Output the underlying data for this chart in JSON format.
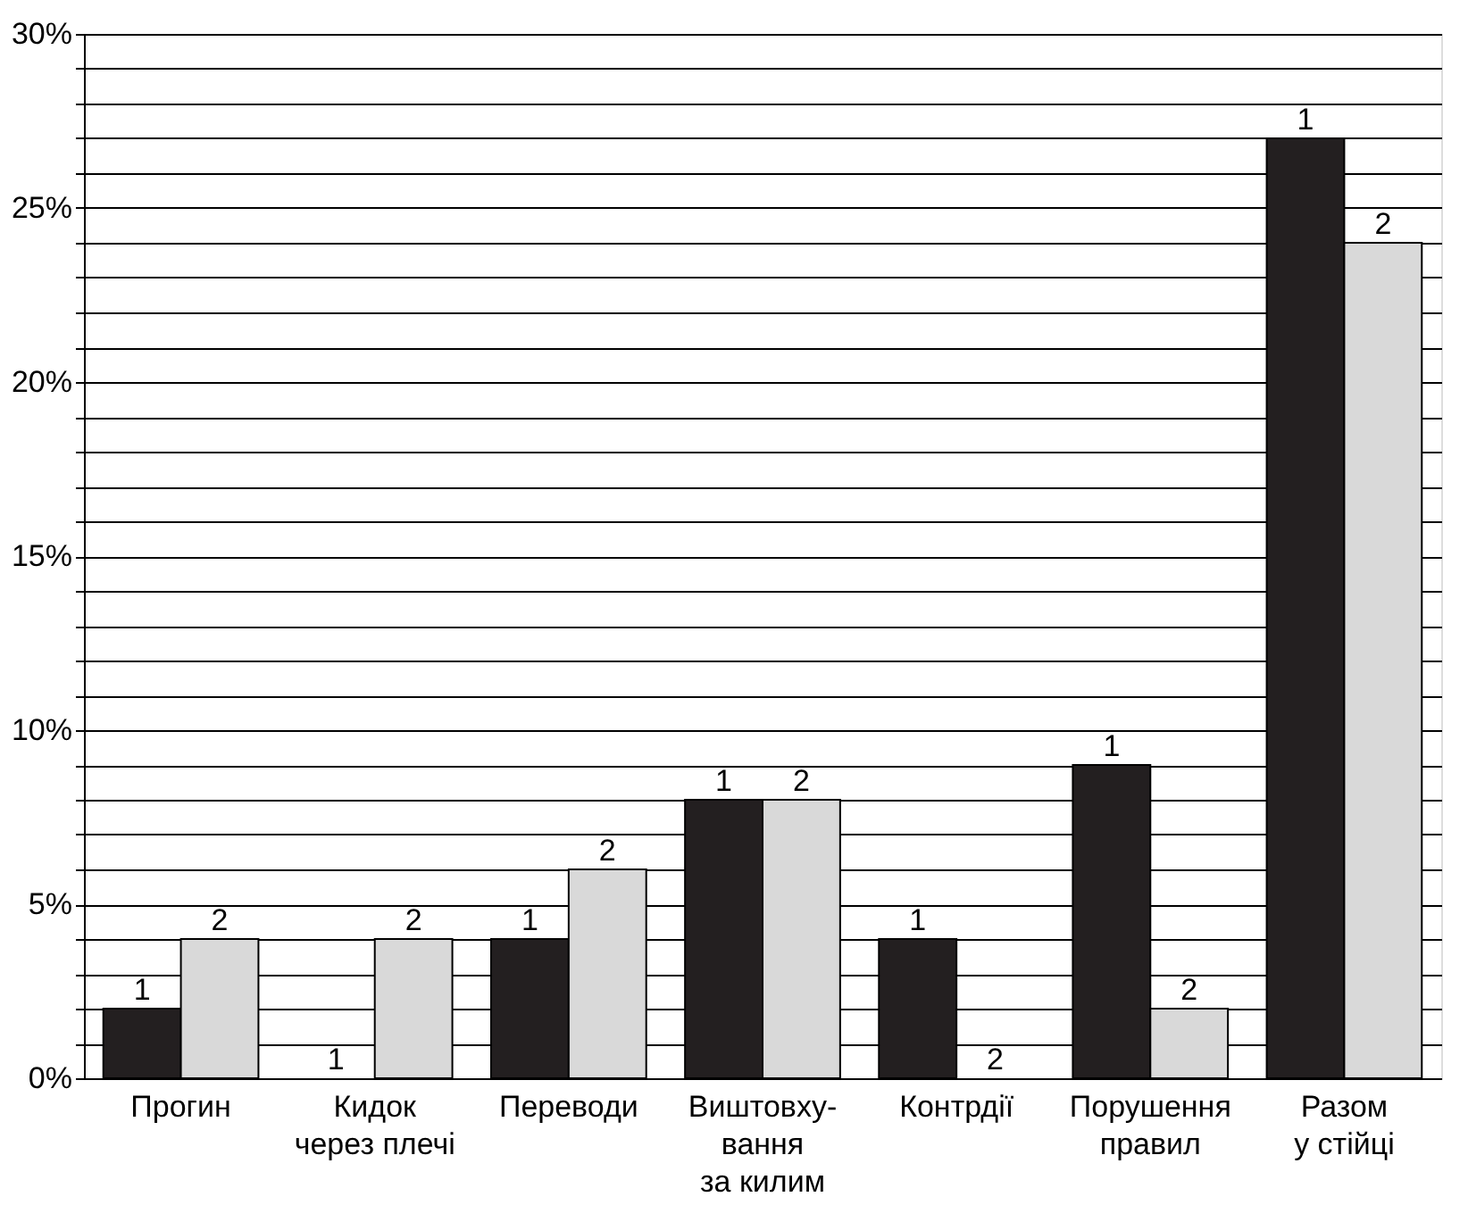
{
  "chart_data": {
    "type": "bar",
    "categories": [
      "Прогин",
      "Кидок\nчерез плечі",
      "Переводи",
      "Виштовху-\nвання\nза килим",
      "Контрдії",
      "Порушення\nправил",
      "Разом\nу стійці"
    ],
    "series": [
      {
        "name": "1",
        "color": "#231f20",
        "values": [
          2,
          0,
          4,
          8,
          4,
          9,
          27
        ]
      },
      {
        "name": "2",
        "color": "#d9d9d9",
        "values": [
          4,
          4,
          6,
          8,
          0,
          2,
          24
        ]
      }
    ],
    "ylim": [
      0,
      30
    ],
    "yticks": [
      {
        "value": 0,
        "label": "0%"
      },
      {
        "value": 1,
        "label": null
      },
      {
        "value": 2,
        "label": null
      },
      {
        "value": 3,
        "label": null
      },
      {
        "value": 4,
        "label": null
      },
      {
        "value": 5,
        "label": "5%"
      },
      {
        "value": 6,
        "label": null
      },
      {
        "value": 7,
        "label": null
      },
      {
        "value": 8,
        "label": null
      },
      {
        "value": 9,
        "label": null
      },
      {
        "value": 10,
        "label": "10%"
      },
      {
        "value": 11,
        "label": null
      },
      {
        "value": 12,
        "label": null
      },
      {
        "value": 13,
        "label": null
      },
      {
        "value": 14,
        "label": null
      },
      {
        "value": 15,
        "label": "15%"
      },
      {
        "value": 16,
        "label": null
      },
      {
        "value": 17,
        "label": null
      },
      {
        "value": 18,
        "label": null
      },
      {
        "value": 19,
        "label": null
      },
      {
        "value": 20,
        "label": "20%"
      },
      {
        "value": 21,
        "label": null
      },
      {
        "value": 22,
        "label": null
      },
      {
        "value": 23,
        "label": null
      },
      {
        "value": 24,
        "label": null
      },
      {
        "value": 25,
        "label": "25%"
      },
      {
        "value": 26,
        "label": null
      },
      {
        "value": 27,
        "label": null
      },
      {
        "value": 28,
        "label": null
      },
      {
        "value": 29,
        "label": null
      },
      {
        "value": 30,
        "label": "30%"
      }
    ],
    "grid": "y",
    "legend": false
  }
}
